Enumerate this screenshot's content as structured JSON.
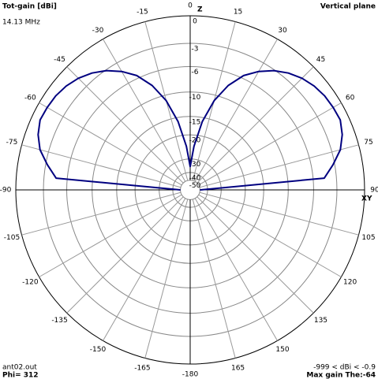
{
  "chart_data": {
    "type": "polar",
    "title": "Tot-gain [dBi]",
    "subtitle": "14.13 MHz",
    "plane": "Vertical plane",
    "z_label": "Z",
    "xy_label": "XY",
    "file": "ant02.out",
    "phi": "Phi= 312",
    "range_note": "-999 < dBi < -0.9",
    "max_note": "Max gain The:-64",
    "color": "#000080",
    "rlim": [
      -50,
      0
    ],
    "rticks": [
      0,
      -3,
      -6,
      -10,
      -15,
      -20,
      -30,
      -40,
      -50
    ],
    "thetaticks": [
      0,
      15,
      30,
      45,
      60,
      75,
      90,
      105,
      120,
      135,
      150,
      165,
      -180,
      -165,
      -150,
      -135,
      -120,
      -105,
      -90,
      -75,
      -60,
      -45,
      -30,
      -15
    ],
    "theta": [
      -90,
      -85,
      -80,
      -75,
      -70,
      -65,
      -60,
      -55,
      -50,
      -45,
      -40,
      -35,
      -30,
      -25,
      -20,
      -15,
      -10,
      -5,
      0,
      5,
      10,
      15,
      20,
      25,
      30,
      35,
      40,
      45,
      50,
      55,
      60,
      65,
      70,
      75,
      80,
      85,
      90
    ],
    "values": [
      -50,
      -4.5,
      -3.2,
      -2.0,
      -1.3,
      -0.9,
      -0.95,
      -1.05,
      -1.3,
      -1.7,
      -2.3,
      -3.1,
      -4.2,
      -5.6,
      -7.8,
      -11,
      -16,
      -24,
      -35,
      -24,
      -16,
      -11,
      -7.8,
      -5.6,
      -4.2,
      -3.1,
      -2.3,
      -1.7,
      -1.3,
      -1.05,
      -0.95,
      -0.9,
      -1.3,
      -2.0,
      -3.2,
      -4.5,
      -50
    ]
  }
}
